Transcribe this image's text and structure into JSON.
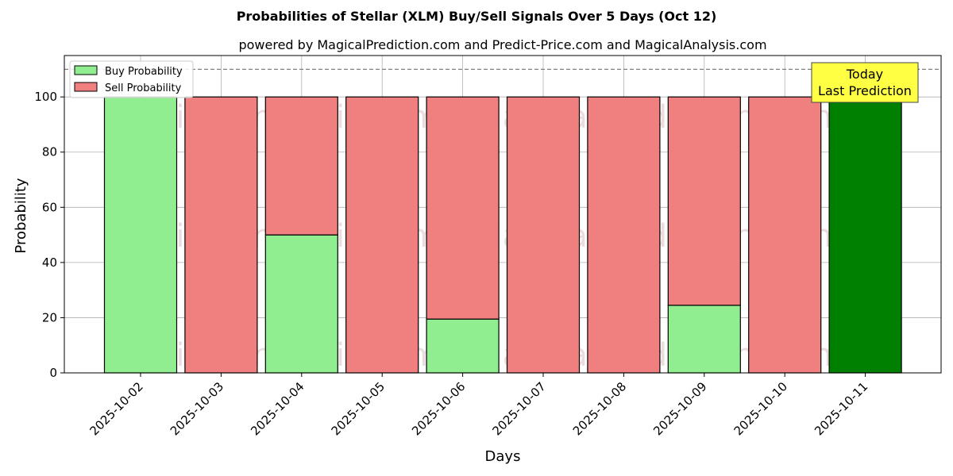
{
  "chart_data": {
    "type": "bar",
    "stacked": true,
    "title": "Probabilities of Stellar (XLM) Buy/Sell Signals Over 5 Days (Oct 12)",
    "subtitle": "powered by MagicalPrediction.com and Predict-Price.com and MagicalAnalysis.com",
    "xlabel": "Days",
    "ylabel": "Probability",
    "ylim": [
      0,
      115
    ],
    "yticks": [
      0,
      20,
      40,
      60,
      80,
      100
    ],
    "grid": true,
    "legend_position": "top-left",
    "reference_line": 110,
    "categories": [
      "2025-10-02",
      "2025-10-03",
      "2025-10-04",
      "2025-10-05",
      "2025-10-06",
      "2025-10-07",
      "2025-10-08",
      "2025-10-09",
      "2025-10-10",
      "2025-10-11"
    ],
    "series": [
      {
        "name": "Buy Probability",
        "color": "#90ee90",
        "values": [
          100,
          0,
          50,
          0,
          19.5,
          0,
          0,
          24.5,
          0,
          100
        ]
      },
      {
        "name": "Sell Probability",
        "color": "#f08080",
        "values": [
          0,
          100,
          50,
          100,
          80.5,
          100,
          100,
          75.5,
          100,
          0
        ]
      }
    ],
    "highlight": {
      "index": 9,
      "color": "#008000"
    },
    "annotation": {
      "lines": [
        "Today",
        "Last Prediction"
      ],
      "color": "#ffff44"
    },
    "watermarks": [
      "MagicalAnalysis.com",
      "MagicalPrediction.com"
    ]
  }
}
